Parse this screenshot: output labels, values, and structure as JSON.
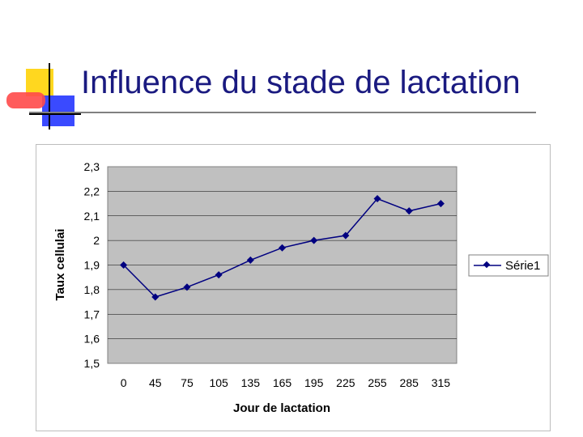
{
  "slide": {
    "title": "Influence du stade de lactation"
  },
  "chart_data": {
    "type": "line",
    "title": "",
    "xlabel": "Jour de lactation",
    "ylabel": "Taux cellulai",
    "categories": [
      "0",
      "45",
      "75",
      "105",
      "135",
      "165",
      "195",
      "225",
      "255",
      "285",
      "315"
    ],
    "series": [
      {
        "name": "Série1",
        "values": [
          1.9,
          1.77,
          1.81,
          1.86,
          1.92,
          1.97,
          2.0,
          2.02,
          2.17,
          2.12,
          2.15
        ]
      }
    ],
    "ylim": [
      1.5,
      2.3
    ],
    "yticks": [
      "1,5",
      "1,6",
      "1,7",
      "1,8",
      "1,9",
      "2",
      "2,1",
      "2,2",
      "2,3"
    ],
    "grid": true,
    "legend_position": "right",
    "colors": {
      "series": "#000080",
      "plot_background": "#c0c0c0",
      "gridline": "#000000"
    }
  }
}
